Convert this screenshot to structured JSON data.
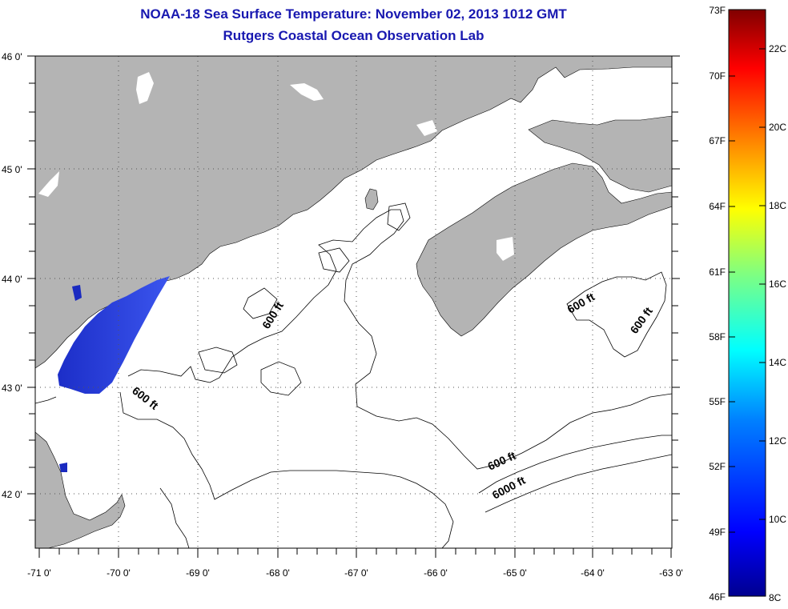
{
  "header": {
    "title": "NOAA-18 Sea Surface Temperature:  November 02, 2013 1012 GMT",
    "subtitle": "Rutgers Coastal Ocean Observation Lab"
  },
  "map": {
    "lat_labels": [
      "46 0'",
      "45 0'",
      "44 0'",
      "43 0'",
      "42 0'"
    ],
    "lon_labels": [
      "-71 0'",
      "-70 0'",
      "-69 0'",
      "-68 0'",
      "-67 0'",
      "-66 0'",
      "-65 0'",
      "-64 0'",
      "-63 0'"
    ],
    "contour_labels": [
      "600 ft",
      "600 ft",
      "600 ft",
      "600 ft",
      "600 ft",
      "6000 ft"
    ],
    "colors": {
      "land": "#b4b4b4",
      "ocean": "#ffffff",
      "sst_patch": "#2a3fd8",
      "title": "#1818b0"
    }
  },
  "colorbar": {
    "f_labels": [
      "73F",
      "70F",
      "67F",
      "64F",
      "61F",
      "58F",
      "55F",
      "52F",
      "49F",
      "46F"
    ],
    "c_labels": [
      "22C",
      "20C",
      "18C",
      "16C",
      "14C",
      "12C",
      "10C",
      "8C"
    ],
    "colors": [
      "#00008f",
      "#0000ff",
      "#0080ff",
      "#00ffff",
      "#80ff80",
      "#ffff00",
      "#ff8000",
      "#ff0000",
      "#800000"
    ]
  }
}
